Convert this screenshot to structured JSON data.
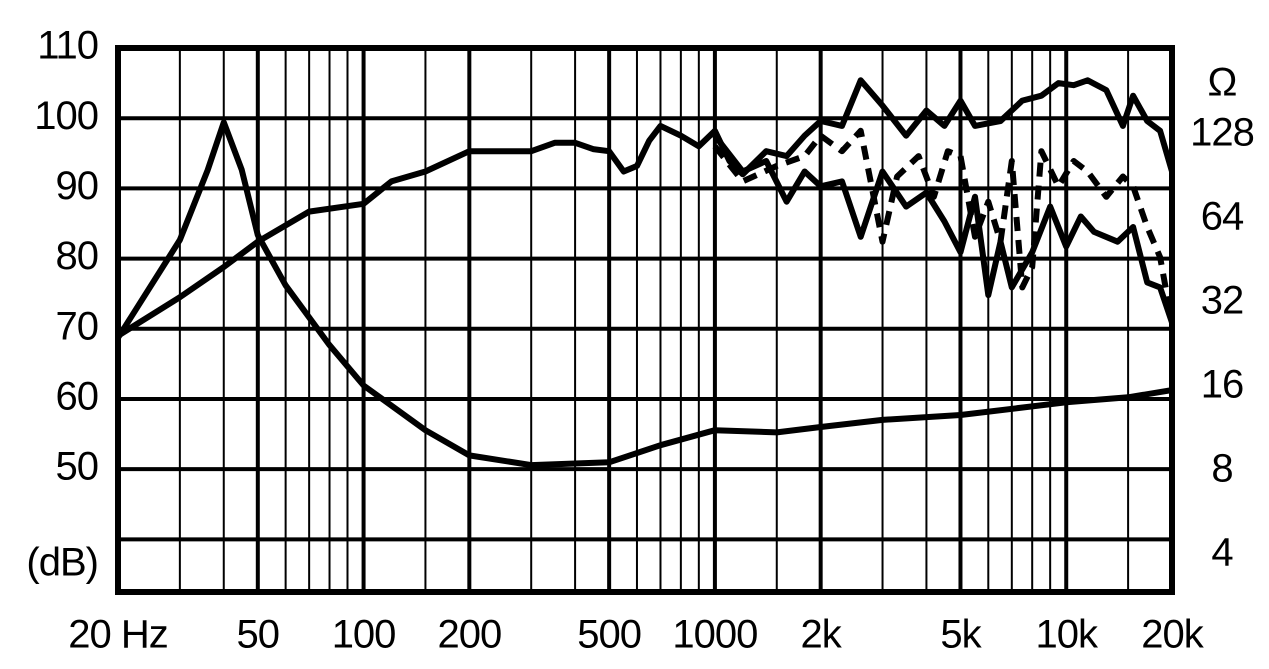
{
  "chart_data": {
    "type": "line",
    "ylabel": "(dB)",
    "y2label": "Ω",
    "xscale": "log",
    "y2scale": "log",
    "xlim": [
      20,
      20000
    ],
    "xticks": [
      {
        "value": 20,
        "label": "20 Hz"
      },
      50,
      100,
      200,
      500,
      1000,
      {
        "value": 2000,
        "label": "2k"
      },
      {
        "value": 5000,
        "label": "5k"
      },
      {
        "value": 10000,
        "label": "10k"
      },
      {
        "value": 20000,
        "label": "20k"
      }
    ],
    "xgrid_minor": [
      30,
      40,
      60,
      70,
      80,
      90,
      150,
      300,
      400,
      600,
      700,
      800,
      900,
      1500,
      3000,
      4000,
      6000,
      7000,
      8000,
      9000,
      15000
    ],
    "ylim": [
      32.5,
      110
    ],
    "yticks": [
      50,
      60,
      70,
      80,
      90,
      100,
      110
    ],
    "ygrid": [
      40,
      50,
      60,
      70,
      80,
      90,
      100
    ],
    "y2lim": [
      2.95,
      262
    ],
    "y2ticks": [
      4,
      8,
      16,
      32,
      64,
      128
    ],
    "color": "#000000",
    "series": [
      {
        "color": "#000000",
        "dash": false,
        "x": [
          20,
          30,
          40,
          50,
          70,
          100,
          120,
          150,
          200,
          300,
          350,
          400,
          450,
          500,
          550,
          600,
          650,
          700,
          800,
          900,
          1000,
          1100,
          1200,
          1400,
          1600,
          1800,
          2000,
          2300,
          2600,
          3000,
          3500,
          4000,
          4500,
          5000,
          5500,
          6500,
          7500,
          8500,
          9500,
          10500,
          11500,
          13000,
          14500,
          15500,
          17000,
          18500,
          20000
        ],
        "values": [
          69.0,
          74.5,
          78.8,
          82.4,
          86.7,
          87.8,
          91,
          92.4,
          95.3,
          95.3,
          96.5,
          96.5,
          95.6,
          95.3,
          92.4,
          93.2,
          96.8,
          98.9,
          97.5,
          96,
          98.2,
          93.9,
          92,
          95.3,
          94.6,
          97.5,
          99.6,
          98.9,
          105.4,
          101.8,
          97.5,
          101.1,
          98.9,
          102.5,
          98.9,
          99.6,
          102.5,
          103.2,
          105,
          104.7,
          105.4,
          104,
          98.9,
          103.2,
          99.6,
          98.2,
          92.4
        ]
      },
      {
        "color": "#000000",
        "dash": true,
        "x": [
          1000,
          1200,
          1500,
          1800,
          2000,
          2300,
          2600,
          3000,
          3300,
          3800,
          4200,
          4600,
          5000,
          5500,
          6000,
          6500,
          7000,
          7500,
          8000,
          8500,
          9500,
          10500,
          11500,
          13000,
          14500,
          15500,
          17000,
          18500,
          20000
        ],
        "values": [
          96,
          91,
          93.2,
          94.6,
          97.5,
          95.3,
          98.2,
          82.4,
          91.7,
          94.6,
          88.8,
          95.3,
          94.6,
          83.1,
          88.1,
          82.4,
          93.9,
          75.9,
          78.8,
          95.3,
          90.3,
          93.9,
          92.4,
          88.8,
          91.7,
          90.3,
          84.5,
          80.2,
          70.9
        ]
      },
      {
        "color": "#000000",
        "dash": false,
        "x": [
          1000,
          1200,
          1400,
          1600,
          1800,
          2000,
          2300,
          2600,
          3000,
          3500,
          4000,
          4500,
          5000,
          5500,
          6000,
          6500,
          7000,
          8000,
          9000,
          10000,
          11000,
          12000,
          14000,
          15500,
          17000,
          18500,
          20000
        ],
        "values": [
          97.5,
          92.4,
          93.9,
          88.1,
          92.4,
          90.3,
          91,
          83.1,
          92.4,
          87.4,
          89.4,
          85.3,
          80.9,
          88.8,
          74.8,
          82.4,
          75.9,
          80.9,
          87.4,
          81.7,
          86.0,
          83.8,
          82.4,
          84.5,
          76.6,
          75.9,
          70.9
        ]
      },
      {
        "color": "#000000",
        "dash": false,
        "axis": "y2",
        "x": [
          20,
          30,
          36,
          40,
          45,
          50,
          60,
          80,
          100,
          150,
          200,
          300,
          500,
          700,
          1000,
          1500,
          2000,
          3000,
          5000,
          10000,
          15000,
          20000
        ],
        "values": [
          24,
          53.8,
          95.8,
          142,
          96,
          56,
          37,
          22.6,
          16.2,
          11.2,
          9.1,
          8.4,
          8.6,
          9.9,
          11.2,
          11.0,
          11.5,
          12.2,
          12.7,
          14.1,
          14.7,
          15.6
        ]
      }
    ]
  }
}
